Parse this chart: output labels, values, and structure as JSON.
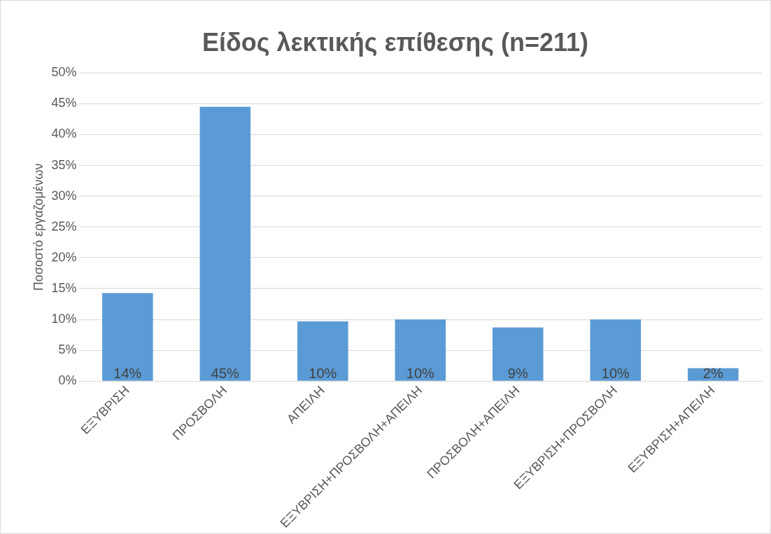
{
  "chart_data": {
    "type": "bar",
    "title": "Είδος λεκτικής επίθεσης (n=211)",
    "ylabel": "Ποσοστό εργαζομένων",
    "categories": [
      "ΕΞΥΒΡΙΣΗ",
      "ΠΡΟΣΒΟΛΗ",
      "ΑΠΕΙΛΗ",
      "ΕΞΥΒΡΙΣΗ+ΠΡΟΣΒΟΛΗ+ΑΠΕΙΛΗ",
      "ΠΡΟΣΒΟΛΗ+ΑΠΕΙΛΗ",
      "ΕΞΥΒΡΙΣΗ+ΠΡΟΣΒΟΛΗ",
      "ΕΞΥΒΡΙΣΗ+ΑΠΕΙΛΗ"
    ],
    "values": [
      14.3,
      44.5,
      9.7,
      10,
      8.7,
      10,
      2.1
    ],
    "value_labels": [
      "14%",
      "45%",
      "10%",
      "10%",
      "9%",
      "10%",
      "2%"
    ],
    "color": "#5b9bd5",
    "ylim": [
      0,
      50
    ],
    "yticks": [
      {
        "value": 0,
        "label": "0%"
      },
      {
        "value": 5,
        "label": "5%"
      },
      {
        "value": 10,
        "label": "10%"
      },
      {
        "value": 15,
        "label": "15%"
      },
      {
        "value": 20,
        "label": "20%"
      },
      {
        "value": 25,
        "label": "25%"
      },
      {
        "value": 30,
        "label": "30%"
      },
      {
        "value": 35,
        "label": "35%"
      },
      {
        "value": 40,
        "label": "40%"
      },
      {
        "value": 45,
        "label": "45%"
      },
      {
        "value": 50,
        "label": "50%"
      }
    ],
    "grid": "y",
    "legend": false
  }
}
